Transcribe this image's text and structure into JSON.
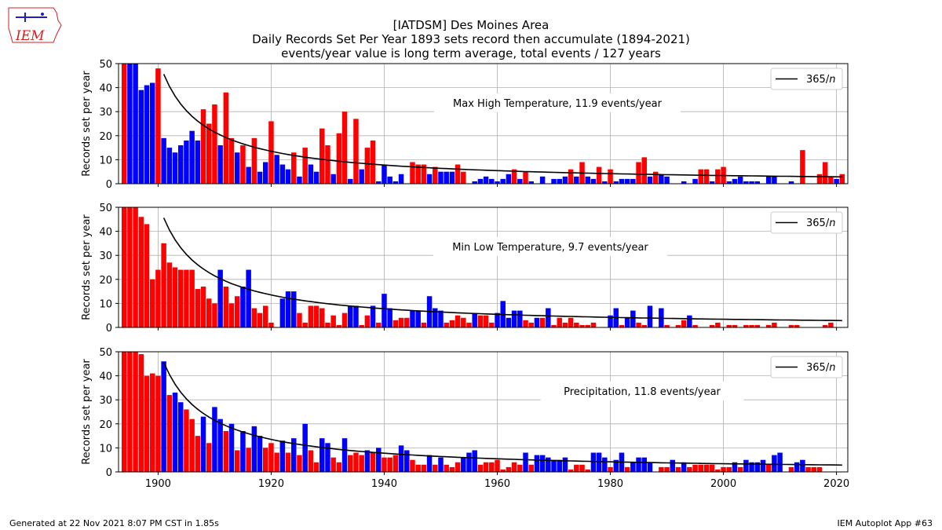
{
  "header": {
    "title_line1": "[IATDSM] Des Moines Area",
    "title_line2": "Daily Records Set Per Year 1893 sets record then accumulate (1894-2021)",
    "title_line3": "events/year value is long term average, total events / 127 years"
  },
  "logo": {
    "text": "IEM"
  },
  "footer": {
    "left": "Generated at 22 Nov 2021 8:07 PM CST in 1.85s",
    "right": "IEM Autoplot App #63"
  },
  "colors": {
    "above": "#ff0000",
    "below": "#0000ff",
    "curve": "#000000",
    "grid": "#b0b0b0"
  },
  "chart_data": [
    {
      "type": "bar",
      "annotation": "Max High Temperature, 11.9 events/year",
      "ylabel": "Records set per year",
      "legend": {
        "label": "365/n",
        "position": "top-right"
      },
      "curve": "365/n",
      "xlim": [
        1893,
        2022
      ],
      "ylim": [
        0,
        50
      ],
      "x_ticks": [
        "1900",
        "1920",
        "1940",
        "1960",
        "1980",
        "2000",
        "2020"
      ],
      "y_ticks": [
        "0",
        "10",
        "20",
        "30",
        "40",
        "50"
      ],
      "grid": true,
      "x_start": 1894,
      "values": [
        50,
        50,
        50,
        39,
        41,
        42,
        48,
        19,
        15,
        13,
        16,
        18,
        22,
        18,
        31,
        25,
        33,
        16,
        38,
        19,
        13,
        16,
        7,
        19,
        5,
        9,
        26,
        12,
        8,
        6,
        13,
        3,
        15,
        8,
        5,
        23,
        16,
        4,
        21,
        30,
        2,
        27,
        6,
        15,
        18,
        1,
        8,
        3,
        1,
        4,
        0,
        9,
        8,
        8,
        4,
        7,
        5,
        5,
        5,
        8,
        5,
        0,
        1,
        2,
        3,
        2,
        1,
        2,
        4,
        6,
        2,
        5,
        1,
        0,
        3,
        0,
        2,
        2,
        3,
        6,
        3,
        9,
        3,
        2,
        7,
        1,
        6,
        1,
        2,
        2,
        2,
        9,
        11,
        3,
        5,
        4,
        3,
        0,
        0,
        1,
        0,
        2,
        6,
        6,
        1,
        6,
        7,
        1,
        2,
        3,
        1,
        1,
        1,
        0,
        3,
        3,
        0,
        0,
        1,
        0,
        14,
        0,
        0,
        4,
        9,
        3,
        2,
        4
      ],
      "colors": [
        "r",
        "b",
        "b",
        "b",
        "b",
        "b",
        "r",
        "b",
        "b",
        "b",
        "b",
        "b",
        "b",
        "b",
        "r",
        "r",
        "r",
        "b",
        "r",
        "r",
        "b",
        "r",
        "b",
        "r",
        "b",
        "b",
        "r",
        "b",
        "b",
        "b",
        "r",
        "b",
        "r",
        "b",
        "b",
        "r",
        "r",
        "b",
        "r",
        "r",
        "b",
        "r",
        "b",
        "r",
        "r",
        "b",
        "b",
        "b",
        "b",
        "b",
        "b",
        "r",
        "r",
        "r",
        "b",
        "r",
        "b",
        "b",
        "b",
        "r",
        "r",
        "b",
        "b",
        "b",
        "b",
        "b",
        "b",
        "b",
        "b",
        "r",
        "b",
        "r",
        "b",
        "b",
        "b",
        "b",
        "b",
        "b",
        "b",
        "r",
        "b",
        "r",
        "b",
        "b",
        "r",
        "b",
        "r",
        "b",
        "b",
        "b",
        "b",
        "r",
        "r",
        "b",
        "r",
        "b",
        "b",
        "b",
        "b",
        "b",
        "b",
        "b",
        "r",
        "r",
        "b",
        "r",
        "r",
        "b",
        "b",
        "b",
        "b",
        "b",
        "b",
        "b",
        "b",
        "b",
        "b",
        "b",
        "b",
        "b",
        "r",
        "b",
        "b",
        "r",
        "r",
        "r",
        "b",
        "r"
      ]
    },
    {
      "type": "bar",
      "annotation": "Min Low Temperature, 9.7 events/year",
      "ylabel": "Records set per year",
      "legend": {
        "label": "365/n",
        "position": "top-right"
      },
      "curve": "365/n",
      "xlim": [
        1893,
        2022
      ],
      "ylim": [
        0,
        50
      ],
      "x_ticks": [
        "1900",
        "1920",
        "1940",
        "1960",
        "1980",
        "2000",
        "2020"
      ],
      "y_ticks": [
        "0",
        "10",
        "20",
        "30",
        "40",
        "50"
      ],
      "grid": true,
      "x_start": 1894,
      "values": [
        50,
        50,
        50,
        46,
        43,
        20,
        24,
        35,
        27,
        25,
        24,
        24,
        24,
        16,
        17,
        12,
        10,
        24,
        17,
        10,
        13,
        17,
        24,
        8,
        6,
        9,
        2,
        0,
        12,
        15,
        15,
        6,
        2,
        9,
        9,
        8,
        2,
        5,
        1,
        6,
        9,
        9,
        1,
        5,
        9,
        2,
        14,
        8,
        3,
        4,
        4,
        7,
        7,
        2,
        13,
        8,
        7,
        2,
        3,
        5,
        4,
        2,
        6,
        5,
        5,
        2,
        6,
        11,
        4,
        7,
        7,
        3,
        2,
        4,
        4,
        8,
        1,
        4,
        2,
        4,
        2,
        1,
        1,
        2,
        0,
        0,
        5,
        8,
        1,
        4,
        7,
        2,
        1,
        9,
        0,
        8,
        1,
        0,
        1,
        3,
        5,
        1,
        0,
        0,
        1,
        2,
        0,
        1,
        1,
        0,
        1,
        1,
        1,
        0,
        1,
        2,
        0,
        0,
        1,
        1,
        0,
        0,
        0,
        0,
        1,
        2,
        0,
        0
      ],
      "colors": [
        "r",
        "r",
        "r",
        "r",
        "r",
        "r",
        "r",
        "r",
        "r",
        "r",
        "r",
        "r",
        "r",
        "r",
        "r",
        "r",
        "r",
        "b",
        "r",
        "r",
        "r",
        "b",
        "b",
        "r",
        "r",
        "r",
        "r",
        "r",
        "b",
        "b",
        "b",
        "r",
        "r",
        "r",
        "r",
        "r",
        "r",
        "r",
        "r",
        "r",
        "b",
        "b",
        "r",
        "r",
        "b",
        "r",
        "b",
        "b",
        "r",
        "r",
        "r",
        "b",
        "b",
        "r",
        "b",
        "b",
        "b",
        "r",
        "r",
        "r",
        "r",
        "r",
        "b",
        "r",
        "r",
        "r",
        "b",
        "b",
        "b",
        "b",
        "b",
        "r",
        "r",
        "b",
        "r",
        "b",
        "r",
        "r",
        "r",
        "r",
        "r",
        "r",
        "r",
        "r",
        "r",
        "r",
        "b",
        "b",
        "r",
        "b",
        "b",
        "r",
        "r",
        "b",
        "r",
        "b",
        "r",
        "r",
        "r",
        "r",
        "b",
        "r",
        "r",
        "r",
        "r",
        "r",
        "r",
        "r",
        "r",
        "r",
        "r",
        "r",
        "r",
        "r",
        "r",
        "r",
        "r",
        "r",
        "r",
        "r",
        "r",
        "r",
        "r",
        "r",
        "r",
        "r",
        "r",
        "r"
      ]
    },
    {
      "type": "bar",
      "annotation": "Precipitation, 11.8 events/year",
      "ylabel": "Records set per year",
      "legend": {
        "label": "365/n",
        "position": "top-right"
      },
      "curve": "365/n",
      "xlim": [
        1893,
        2022
      ],
      "ylim": [
        0,
        50
      ],
      "x_ticks": [
        "1900",
        "1920",
        "1940",
        "1960",
        "1980",
        "2000",
        "2020"
      ],
      "y_ticks": [
        "0",
        "10",
        "20",
        "30",
        "40",
        "50"
      ],
      "grid": true,
      "x_start": 1894,
      "values": [
        50,
        50,
        50,
        49,
        40,
        41,
        40,
        46,
        32,
        33,
        29,
        26,
        22,
        15,
        23,
        12,
        27,
        22,
        17,
        20,
        9,
        17,
        10,
        19,
        15,
        10,
        12,
        8,
        13,
        8,
        14,
        7,
        20,
        9,
        4,
        14,
        12,
        6,
        4,
        14,
        7,
        8,
        7,
        9,
        8,
        10,
        6,
        6,
        7,
        11,
        9,
        5,
        3,
        3,
        7,
        3,
        6,
        3,
        2,
        4,
        6,
        8,
        9,
        3,
        4,
        4,
        5,
        1,
        2,
        4,
        3,
        8,
        3,
        7,
        7,
        6,
        5,
        5,
        6,
        1,
        3,
        3,
        1,
        8,
        8,
        6,
        2,
        5,
        8,
        2,
        4,
        6,
        6,
        4,
        0,
        2,
        2,
        5,
        2,
        4,
        2,
        3,
        3,
        3,
        3,
        1,
        2,
        2,
        4,
        2,
        5,
        4,
        4,
        5,
        3,
        7,
        8,
        0,
        2,
        4,
        5,
        2,
        2,
        2,
        0,
        0,
        0,
        0
      ],
      "colors": [
        "r",
        "r",
        "r",
        "r",
        "r",
        "r",
        "r",
        "b",
        "r",
        "b",
        "b",
        "r",
        "r",
        "r",
        "b",
        "r",
        "b",
        "b",
        "r",
        "b",
        "r",
        "b",
        "r",
        "b",
        "b",
        "r",
        "r",
        "r",
        "b",
        "r",
        "b",
        "r",
        "b",
        "r",
        "r",
        "b",
        "b",
        "r",
        "r",
        "b",
        "r",
        "r",
        "r",
        "b",
        "r",
        "b",
        "r",
        "r",
        "r",
        "b",
        "b",
        "r",
        "r",
        "r",
        "b",
        "r",
        "b",
        "r",
        "r",
        "r",
        "b",
        "b",
        "b",
        "r",
        "r",
        "r",
        "r",
        "r",
        "r",
        "r",
        "r",
        "b",
        "r",
        "b",
        "b",
        "b",
        "b",
        "b",
        "b",
        "r",
        "r",
        "r",
        "r",
        "b",
        "b",
        "b",
        "r",
        "b",
        "b",
        "r",
        "b",
        "b",
        "b",
        "b",
        "r",
        "r",
        "r",
        "b",
        "r",
        "b",
        "r",
        "r",
        "r",
        "r",
        "r",
        "r",
        "r",
        "r",
        "b",
        "r",
        "b",
        "b",
        "b",
        "b",
        "r",
        "b",
        "b",
        "r",
        "r",
        "b",
        "b",
        "r",
        "r",
        "r",
        "r",
        "r",
        "r",
        "r"
      ]
    }
  ]
}
